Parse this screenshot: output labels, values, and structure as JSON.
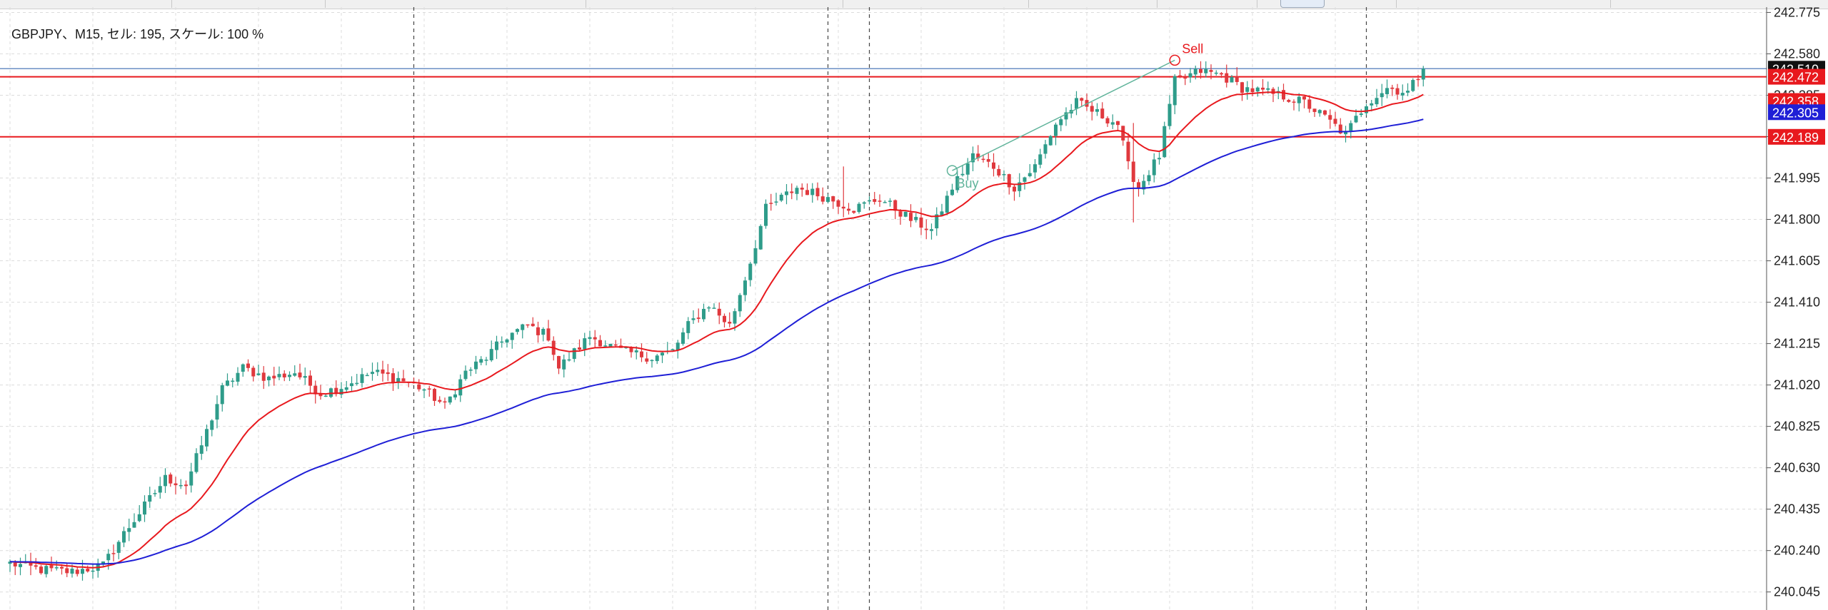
{
  "symbol_info": "GBPJPY、M15, セル: 195, スケール: 100 %",
  "colors": {
    "bull": "#2e9c8a",
    "bear": "#e0393e",
    "fast_ma": "#e8191e",
    "slow_ma": "#1f1fd6",
    "level_line": "#e8191e",
    "bid_line": "#6b8fc4",
    "grid": "#dcdcdc",
    "trendline": "#5fb39a"
  },
  "chart_data": {
    "type": "candlestick",
    "symbol": "GBPJPY",
    "timeframe": "M15",
    "y_range": [
      239.96,
      242.8
    ],
    "y_ticks": [
      "242.775",
      "242.580",
      "242.385",
      "242.190",
      "241.995",
      "241.800",
      "241.605",
      "241.410",
      "241.215",
      "241.020",
      "240.825",
      "240.630",
      "240.435",
      "240.240",
      "240.045"
    ],
    "price_labels": [
      {
        "text": "242.510",
        "value": 242.51,
        "role": "bid"
      },
      {
        "text": "242.472",
        "value": 242.472,
        "role": "level"
      },
      {
        "text": "242.358",
        "value": 242.358,
        "role": "level"
      },
      {
        "text": "242.305",
        "value": 242.305,
        "role": "slow_ma"
      },
      {
        "text": "242.189",
        "value": 242.189,
        "role": "level"
      }
    ],
    "horizontal_levels": [
      242.472,
      242.189
    ],
    "bid_line": 242.51,
    "fast_ma_last": 242.358,
    "slow_ma_last": 242.305,
    "trade_markers": [
      {
        "label": "Buy",
        "bar": 182,
        "price": 242.03,
        "color": "#5fb39a"
      },
      {
        "label": "Sell",
        "bar": 225,
        "price": 242.55,
        "color": "#e8191e"
      }
    ],
    "trendline": {
      "from": {
        "bar": 182,
        "price": 242.03
      },
      "to": {
        "bar": 225,
        "price": 242.55
      }
    },
    "session_separator_bars": [
      78,
      158,
      166,
      262
    ],
    "series": [
      {
        "name": "Fast MA",
        "role": "fast_ma",
        "period": 20
      },
      {
        "name": "Slow MA",
        "role": "slow_ma",
        "period": 75
      }
    ],
    "bar_count": 274,
    "close_anchors": [
      [
        0,
        240.18
      ],
      [
        6,
        240.15
      ],
      [
        12,
        240.14
      ],
      [
        18,
        240.17
      ],
      [
        22,
        240.32
      ],
      [
        26,
        240.45
      ],
      [
        30,
        240.58
      ],
      [
        34,
        240.55
      ],
      [
        38,
        240.8
      ],
      [
        41,
        241.0
      ],
      [
        45,
        241.1
      ],
      [
        50,
        241.05
      ],
      [
        55,
        241.08
      ],
      [
        60,
        240.98
      ],
      [
        65,
        241.02
      ],
      [
        70,
        241.08
      ],
      [
        75,
        241.05
      ],
      [
        80,
        241.0
      ],
      [
        84,
        240.92
      ],
      [
        88,
        241.08
      ],
      [
        92,
        241.15
      ],
      [
        96,
        241.25
      ],
      [
        100,
        241.3
      ],
      [
        104,
        241.25
      ],
      [
        106,
        241.1
      ],
      [
        112,
        241.25
      ],
      [
        118,
        241.18
      ],
      [
        124,
        241.15
      ],
      [
        128,
        241.18
      ],
      [
        131,
        241.3
      ],
      [
        135,
        241.4
      ],
      [
        139,
        241.3
      ],
      [
        143,
        241.6
      ],
      [
        146,
        241.85
      ],
      [
        152,
        241.95
      ],
      [
        158,
        241.9
      ],
      [
        163,
        241.85
      ],
      [
        168,
        241.9
      ],
      [
        174,
        241.8
      ],
      [
        178,
        241.75
      ],
      [
        182,
        241.95
      ],
      [
        186,
        242.1
      ],
      [
        190,
        242.05
      ],
      [
        194,
        241.95
      ],
      [
        198,
        242.05
      ],
      [
        202,
        242.25
      ],
      [
        206,
        242.35
      ],
      [
        210,
        242.3
      ],
      [
        214,
        242.25
      ],
      [
        216,
        242.05
      ],
      [
        218,
        241.95
      ],
      [
        222,
        242.1
      ],
      [
        225,
        242.45
      ],
      [
        230,
        242.5
      ],
      [
        234,
        242.48
      ],
      [
        238,
        242.42
      ],
      [
        242,
        242.4
      ],
      [
        246,
        242.38
      ],
      [
        250,
        242.35
      ],
      [
        254,
        242.28
      ],
      [
        258,
        242.2
      ],
      [
        262,
        242.35
      ],
      [
        266,
        242.42
      ],
      [
        270,
        242.4
      ],
      [
        273,
        242.51
      ]
    ]
  }
}
